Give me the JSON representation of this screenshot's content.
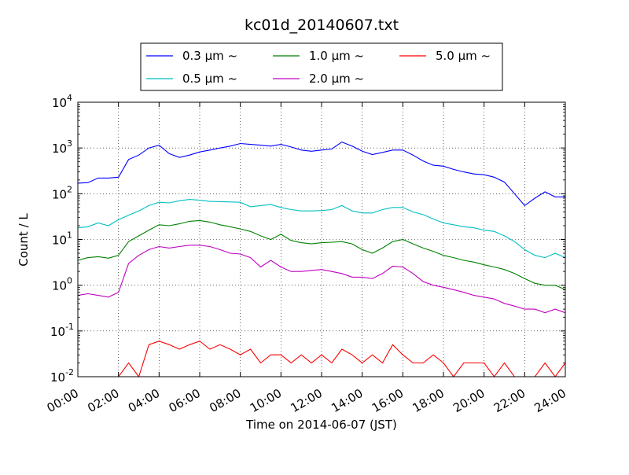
{
  "chart_data": {
    "type": "line",
    "title": "kc01d_20140607.txt",
    "xlabel": "Time on 2014-06-07 (JST)",
    "ylabel": "Count / L",
    "yscale": "log",
    "ylim": [
      0.01,
      10000
    ],
    "xlim": [
      "00:00",
      "24:00"
    ],
    "grid": true,
    "legend_placement": "top-center",
    "x_ticks": [
      "00:00",
      "02:00",
      "04:00",
      "06:00",
      "08:00",
      "10:00",
      "12:00",
      "14:00",
      "16:00",
      "18:00",
      "20:00",
      "22:00",
      "24:00"
    ],
    "y_ticks": [
      {
        "value": 0.01,
        "base": "10",
        "exp": "-2"
      },
      {
        "value": 0.1,
        "base": "10",
        "exp": "-1"
      },
      {
        "value": 1,
        "base": "10",
        "exp": "0"
      },
      {
        "value": 10,
        "base": "10",
        "exp": "1"
      },
      {
        "value": 100,
        "base": "10",
        "exp": "2"
      },
      {
        "value": 1000,
        "base": "10",
        "exp": "3"
      },
      {
        "value": 10000,
        "base": "10",
        "exp": "4"
      }
    ],
    "x": [
      "00:00",
      "00:30",
      "01:00",
      "01:30",
      "02:00",
      "02:30",
      "03:00",
      "03:30",
      "04:00",
      "04:30",
      "05:00",
      "05:30",
      "06:00",
      "06:30",
      "07:00",
      "07:30",
      "08:00",
      "08:30",
      "09:00",
      "09:30",
      "10:00",
      "10:30",
      "11:00",
      "11:30",
      "12:00",
      "12:30",
      "13:00",
      "13:30",
      "14:00",
      "14:30",
      "15:00",
      "15:30",
      "16:00",
      "16:30",
      "17:00",
      "17:30",
      "18:00",
      "18:30",
      "19:00",
      "19:30",
      "20:00",
      "20:30",
      "21:00",
      "21:30",
      "22:00",
      "22:30",
      "23:00",
      "23:30",
      "24:00"
    ],
    "series": [
      {
        "name": "0.3 μm ~",
        "color": "#0000ff",
        "values": [
          170,
          175,
          220,
          220,
          230,
          560,
          700,
          1000,
          1150,
          750,
          620,
          700,
          820,
          900,
          1000,
          1100,
          1250,
          1200,
          1150,
          1100,
          1200,
          1050,
          900,
          850,
          900,
          950,
          1350,
          1100,
          850,
          720,
          800,
          900,
          900,
          700,
          520,
          420,
          400,
          340,
          300,
          270,
          260,
          230,
          180,
          100,
          55,
          80,
          110,
          85,
          85
        ]
      },
      {
        "name": "0.5 μm ~",
        "color": "#00bfbf",
        "values": [
          18,
          19,
          23,
          20,
          27,
          34,
          42,
          55,
          65,
          63,
          70,
          75,
          72,
          68,
          67,
          66,
          65,
          52,
          55,
          58,
          50,
          45,
          42,
          42,
          43,
          45,
          55,
          42,
          38,
          38,
          45,
          50,
          50,
          40,
          35,
          28,
          23,
          21,
          19,
          18,
          16,
          15,
          12,
          9,
          6,
          4.5,
          4,
          5,
          4
        ]
      },
      {
        "name": "1.0 μm ~",
        "color": "#008000",
        "values": [
          3.5,
          4.0,
          4.2,
          3.9,
          4.5,
          9,
          12,
          16,
          21,
          20,
          22,
          25,
          26,
          24,
          21,
          19,
          17,
          15,
          12,
          10,
          13,
          9.5,
          8.5,
          8,
          8.5,
          8.7,
          9,
          8,
          6,
          5,
          6.5,
          9,
          10,
          8,
          6.5,
          5.5,
          4.5,
          4,
          3.5,
          3.2,
          2.8,
          2.5,
          2.2,
          1.8,
          1.4,
          1.1,
          1.0,
          1.0,
          0.8
        ]
      },
      {
        "name": "2.0 μm ~",
        "color": "#bf00bf",
        "values": [
          0.6,
          0.65,
          0.6,
          0.55,
          0.7,
          3,
          4.5,
          6,
          7,
          6.5,
          7,
          7.5,
          7.5,
          7,
          6,
          5,
          4.8,
          4,
          2.5,
          3.5,
          2.5,
          2,
          2,
          2.1,
          2.2,
          2,
          1.8,
          1.5,
          1.5,
          1.4,
          1.8,
          2.6,
          2.5,
          1.8,
          1.2,
          1.0,
          0.9,
          0.8,
          0.7,
          0.6,
          0.55,
          0.5,
          0.4,
          0.35,
          0.3,
          0.3,
          0.25,
          0.3,
          0.25
        ]
      },
      {
        "name": "5.0 μm ~",
        "color": "#ff0000",
        "values": [
          0.01,
          0.01,
          0.01,
          0.01,
          0.01,
          0.02,
          0.01,
          0.05,
          0.06,
          0.05,
          0.04,
          0.05,
          0.06,
          0.04,
          0.05,
          0.04,
          0.03,
          0.04,
          0.02,
          0.03,
          0.03,
          0.02,
          0.03,
          0.02,
          0.03,
          0.02,
          0.04,
          0.03,
          0.02,
          0.03,
          0.02,
          0.05,
          0.03,
          0.02,
          0.02,
          0.03,
          0.02,
          0.01,
          0.02,
          0.02,
          0.02,
          0.01,
          0.02,
          0.01,
          0.01,
          0.01,
          0.02,
          0.01,
          0.02
        ]
      }
    ]
  }
}
